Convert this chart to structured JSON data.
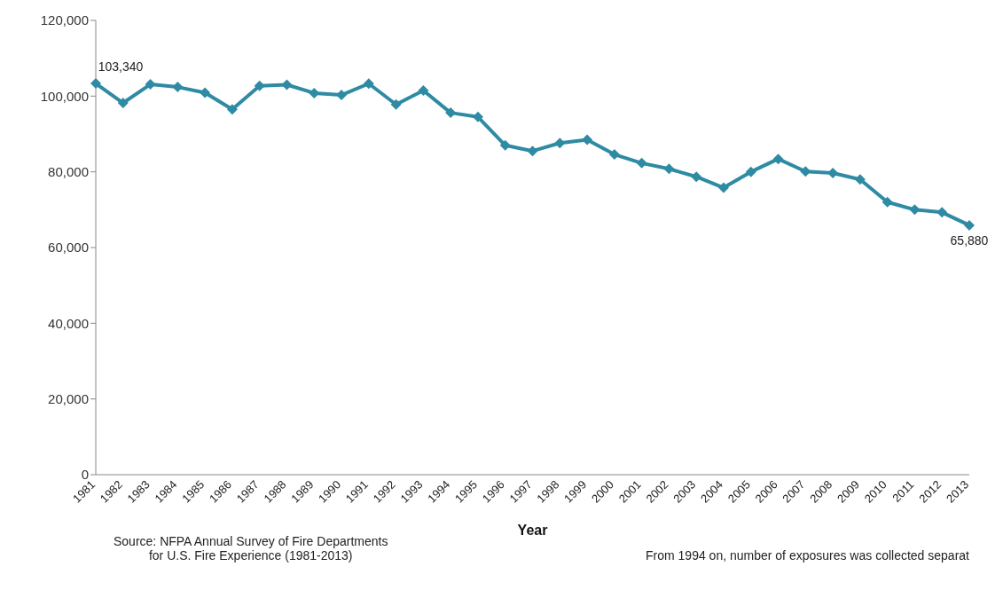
{
  "chart_data": {
    "type": "line",
    "xlabel": "Year",
    "categories": [
      "1981",
      "1982",
      "1983",
      "1984",
      "1985",
      "1986",
      "1987",
      "1988",
      "1989",
      "1990",
      "1991",
      "1992",
      "1993",
      "1994",
      "1995",
      "1996",
      "1997",
      "1998",
      "1999",
      "2000",
      "2001",
      "2002",
      "2003",
      "2004",
      "2005",
      "2006",
      "2007",
      "2008",
      "2009",
      "2010",
      "2011",
      "2012",
      "2013"
    ],
    "series": [
      {
        "color": "#2e8ba3",
        "values": [
          103340,
          98200,
          103100,
          102400,
          100900,
          96500,
          102700,
          103000,
          100800,
          100300,
          103300,
          97800,
          101500,
          95600,
          94500,
          87000,
          85500,
          87600,
          88500,
          84600,
          82300,
          80800,
          78700,
          75800,
          80000,
          83400,
          80100,
          79700,
          78000,
          72000,
          70000,
          69300,
          65880
        ]
      }
    ],
    "ylim": [
      0,
      120000
    ],
    "yticks": [
      {
        "value": 0,
        "label": "0"
      },
      {
        "value": 20000,
        "label": "20,000"
      },
      {
        "value": 40000,
        "label": "40,000"
      },
      {
        "value": 60000,
        "label": "60,000"
      },
      {
        "value": 80000,
        "label": "80,000"
      },
      {
        "value": 100000,
        "label": "100,000"
      },
      {
        "value": 120000,
        "label": "120,000"
      }
    ],
    "grid": false,
    "legend": false,
    "marker": "diamond",
    "line_style": "solid",
    "annotations": [
      {
        "text": "103,340",
        "x": "1981",
        "y": 103340
      },
      {
        "text": "65,880",
        "x": "2013",
        "y": 65880
      },
      "Source: NFPA Annual Survey of Fire Departments\nfor U.S. Fire Experience (1981-2013)",
      "From 1994 on, number of exposures was collected separat"
    ]
  }
}
